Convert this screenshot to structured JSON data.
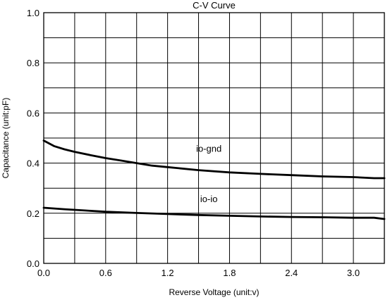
{
  "chart_data": {
    "type": "line",
    "title": "C-V Curve",
    "xlabel": "Reverse Voltage (unit:v)",
    "ylabel": "Capacitance (unit:pF)",
    "xlim": [
      0,
      3.3
    ],
    "ylim": [
      0,
      1.0
    ],
    "x_ticks": [
      "0.0",
      "0.6",
      "1.2",
      "1.8",
      "2.4",
      "3.0"
    ],
    "y_ticks": [
      "0.0",
      "0.2",
      "0.4",
      "0.6",
      "0.8",
      "1.0"
    ],
    "grid": true,
    "series": [
      {
        "name": "io-gnd",
        "color": "#000000",
        "x": [
          0.0,
          0.1,
          0.2,
          0.3,
          0.45,
          0.6,
          0.75,
          0.9,
          1.05,
          1.2,
          1.5,
          1.8,
          2.1,
          2.4,
          2.7,
          3.0,
          3.2,
          3.3
        ],
        "y": [
          0.49,
          0.468,
          0.455,
          0.445,
          0.432,
          0.42,
          0.41,
          0.4,
          0.39,
          0.384,
          0.372,
          0.363,
          0.357,
          0.352,
          0.347,
          0.344,
          0.34,
          0.34
        ]
      },
      {
        "name": "io-io",
        "color": "#000000",
        "x": [
          0.0,
          0.2,
          0.4,
          0.6,
          0.9,
          1.2,
          1.5,
          1.8,
          2.1,
          2.4,
          2.7,
          3.0,
          3.2,
          3.3
        ],
        "y": [
          0.222,
          0.216,
          0.211,
          0.206,
          0.201,
          0.197,
          0.193,
          0.19,
          0.187,
          0.185,
          0.184,
          0.182,
          0.182,
          0.177
        ]
      }
    ],
    "annotations": [
      {
        "text": "io-gnd",
        "x": 1.6,
        "y": 0.445
      },
      {
        "text": "io-io",
        "x": 1.6,
        "y": 0.245
      }
    ]
  }
}
